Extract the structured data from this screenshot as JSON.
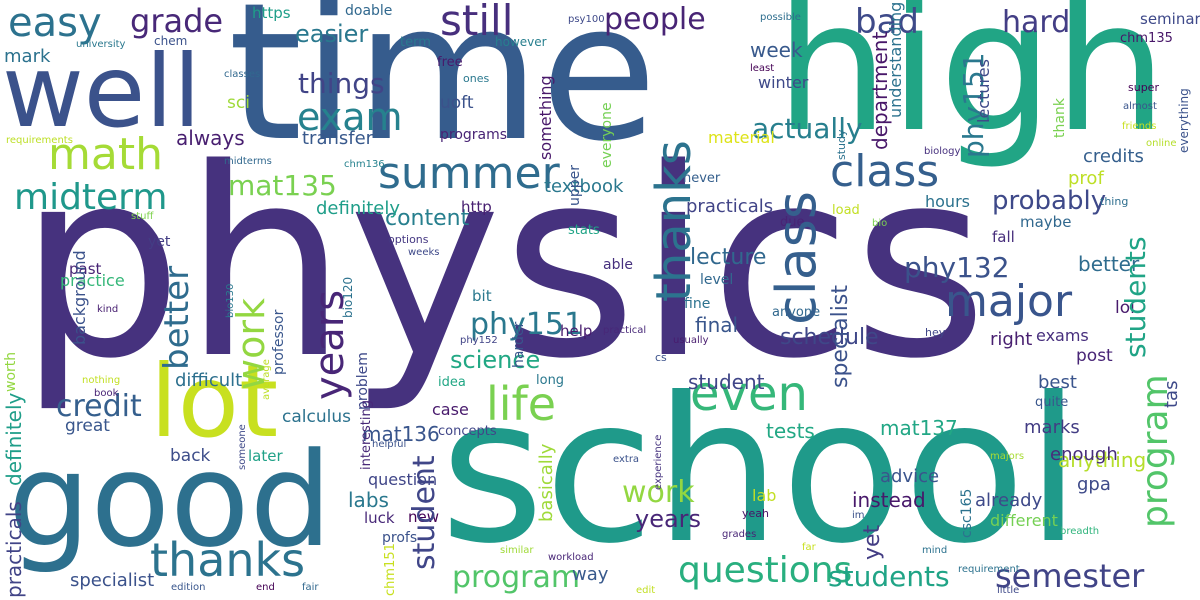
{
  "words": [
    {
      "text": "physics",
      "color": "#46327e"
    },
    {
      "text": "time",
      "color": "#365c8d"
    },
    {
      "text": "high",
      "color": "#21a585"
    },
    {
      "text": "school",
      "color": "#1f9a8a"
    },
    {
      "text": "good",
      "color": "#2d708e"
    },
    {
      "text": "well",
      "color": "#3b528b"
    },
    {
      "text": "lot",
      "color": "#c8e020"
    },
    {
      "text": "easy",
      "color": "#2c728e"
    },
    {
      "text": "grade",
      "color": "#482878"
    },
    {
      "text": "still",
      "color": "#472f7d"
    },
    {
      "text": "people",
      "color": "#482475"
    },
    {
      "text": "bad",
      "color": "#3e4a89"
    },
    {
      "text": "hard",
      "color": "#433e85"
    },
    {
      "text": "easier",
      "color": "#2a788e"
    },
    {
      "text": "math",
      "color": "#a5db36"
    },
    {
      "text": "exam",
      "color": "#26828e"
    },
    {
      "text": "things",
      "color": "#414487"
    },
    {
      "text": "midterm",
      "color": "#1f988b"
    },
    {
      "text": "summer",
      "color": "#2f6c8e"
    },
    {
      "text": "class",
      "color": "#355f8d"
    },
    {
      "text": "major",
      "color": "#39558c"
    },
    {
      "text": "life",
      "color": "#7ad151"
    },
    {
      "text": "even",
      "color": "#35b779"
    },
    {
      "text": "thanks",
      "color": "#2c738e"
    },
    {
      "text": "questions",
      "color": "#29af7f"
    },
    {
      "text": "program",
      "color": "#52c569"
    },
    {
      "text": "students",
      "color": "#20a486"
    },
    {
      "text": "semester",
      "color": "#414487"
    },
    {
      "text": "mat135",
      "color": "#7ad151"
    },
    {
      "text": "credit",
      "color": "#355f8d"
    },
    {
      "text": "probably",
      "color": "#3e4989"
    },
    {
      "text": "actually",
      "color": "#277f8e"
    },
    {
      "text": "phy132",
      "color": "#3b528b"
    },
    {
      "text": "phy151",
      "color": "#2a788e"
    },
    {
      "text": "work",
      "color": "#93d741"
    },
    {
      "text": "years",
      "color": "#482677"
    },
    {
      "text": "final",
      "color": "#39568c"
    },
    {
      "text": "better",
      "color": "#2f6c8e"
    },
    {
      "text": "marks",
      "color": "#433d84"
    },
    {
      "text": "way",
      "color": "#38598c"
    },
    {
      "text": "mat137",
      "color": "#22a785"
    },
    {
      "text": "tests",
      "color": "#22a884"
    },
    {
      "text": "student",
      "color": "#404688"
    },
    {
      "text": "best",
      "color": "#3a548c"
    },
    {
      "text": "back",
      "color": "#3d4d8a"
    },
    {
      "text": "great",
      "color": "#39568c"
    },
    {
      "text": "specialist",
      "color": "#3b528b"
    },
    {
      "text": "labs",
      "color": "#2a788e"
    },
    {
      "text": "mat136",
      "color": "#39558c"
    },
    {
      "text": "question",
      "color": "#404688"
    },
    {
      "text": "difficult",
      "color": "#2d708e"
    },
    {
      "text": "calculus",
      "color": "#2c728e"
    },
    {
      "text": "science",
      "color": "#22a884"
    },
    {
      "text": "schedule",
      "color": "#3f4788"
    },
    {
      "text": "lecture",
      "color": "#31688e"
    },
    {
      "text": "content",
      "color": "#277f8e"
    },
    {
      "text": "definitely",
      "color": "#1f9e89"
    },
    {
      "text": "practicals",
      "color": "#414487"
    },
    {
      "text": "textbook",
      "color": "#2a788e"
    },
    {
      "text": "hours",
      "color": "#2c728e"
    },
    {
      "text": "prof",
      "color": "#bddf26"
    },
    {
      "text": "credits",
      "color": "#355f8d"
    },
    {
      "text": "transfer",
      "color": "#38598c"
    },
    {
      "text": "always",
      "color": "#481f70"
    },
    {
      "text": "sci",
      "color": "#9fda3a"
    },
    {
      "text": "mark",
      "color": "#2c728e"
    },
    {
      "text": "uoft",
      "color": "#3b528b"
    },
    {
      "text": "winter",
      "color": "#3e4989"
    },
    {
      "text": "week",
      "color": "#38598c"
    },
    {
      "text": "material",
      "color": "#dde318"
    },
    {
      "text": "anything",
      "color": "#b5de2b"
    },
    {
      "text": "enough",
      "color": "#472d7b"
    },
    {
      "text": "gpa",
      "color": "#3e4a89"
    },
    {
      "text": "advice",
      "color": "#3a548c"
    },
    {
      "text": "instead",
      "color": "#48186a"
    },
    {
      "text": "already",
      "color": "#3e4989"
    },
    {
      "text": "lab",
      "color": "#c2df23"
    },
    {
      "text": "different",
      "color": "#75d054"
    },
    {
      "text": "post",
      "color": "#482576"
    },
    {
      "text": "exams",
      "color": "#472f7d"
    },
    {
      "text": "right",
      "color": "#481f70"
    },
    {
      "text": "lol",
      "color": "#481a6c"
    },
    {
      "text": "fall",
      "color": "#472e7c"
    },
    {
      "text": "maybe",
      "color": "#31688e"
    },
    {
      "text": "bit",
      "color": "#2a788e"
    },
    {
      "text": "fine",
      "color": "#2c728e"
    },
    {
      "text": "able",
      "color": "#46307e"
    },
    {
      "text": "level",
      "color": "#31688e"
    },
    {
      "text": "practice",
      "color": "#35b779"
    },
    {
      "text": "past",
      "color": "#482475"
    },
    {
      "text": "yet",
      "color": "#433d84"
    },
    {
      "text": "help",
      "color": "#481c6e"
    },
    {
      "text": "case",
      "color": "#481a6c"
    },
    {
      "text": "new",
      "color": "#440154"
    },
    {
      "text": "luck",
      "color": "#482878"
    },
    {
      "text": "profs",
      "color": "#3b528b"
    },
    {
      "text": "later",
      "color": "#1fa187"
    },
    {
      "text": "concepts",
      "color": "#404688"
    },
    {
      "text": "idea",
      "color": "#22a785"
    },
    {
      "text": "long",
      "color": "#2a788e"
    },
    {
      "text": "quite",
      "color": "#39568c"
    },
    {
      "text": "anyone",
      "color": "#31688e"
    },
    {
      "text": "never",
      "color": "#355f8d"
    },
    {
      "text": "stats",
      "color": "#20a486"
    },
    {
      "text": "http",
      "color": "#482071"
    },
    {
      "text": "https",
      "color": "#1f9e89"
    },
    {
      "text": "doable",
      "color": "#31688e"
    },
    {
      "text": "chem",
      "color": "#3b528b"
    },
    {
      "text": "term",
      "color": "#2a788e"
    },
    {
      "text": "however",
      "color": "#277f8e"
    },
    {
      "text": "free",
      "color": "#481a6c"
    },
    {
      "text": "ones",
      "color": "#2a788e"
    },
    {
      "text": "programs",
      "color": "#482475"
    },
    {
      "text": "seminar",
      "color": "#3e4989"
    },
    {
      "text": "chm135",
      "color": "#481769"
    },
    {
      "text": "psy100",
      "color": "#3e4989"
    },
    {
      "text": "possible",
      "color": "#2e6e8e"
    },
    {
      "text": "university",
      "color": "#2a788e"
    },
    {
      "text": "classes",
      "color": "#31688e"
    },
    {
      "text": "least",
      "color": "#440154"
    },
    {
      "text": "requirements",
      "color": "#bddf26"
    },
    {
      "text": "midterms",
      "color": "#31688e"
    },
    {
      "text": "chm136",
      "color": "#26828e"
    },
    {
      "text": "stuff",
      "color": "#7fd34e"
    },
    {
      "text": "biology",
      "color": "#46307e"
    },
    {
      "text": "thing",
      "color": "#2e6e8e"
    },
    {
      "text": "bio",
      "color": "#7ad151"
    },
    {
      "text": "options",
      "color": "#453882"
    },
    {
      "text": "weeks",
      "color": "#3e4989"
    },
    {
      "text": "load",
      "color": "#c2df23"
    },
    {
      "text": "due",
      "color": "#482475"
    },
    {
      "text": "super",
      "color": "#440154"
    },
    {
      "text": "almost",
      "color": "#39558c"
    },
    {
      "text": "online",
      "color": "#b5de2b"
    },
    {
      "text": "friends",
      "color": "#c8e020"
    },
    {
      "text": "kind",
      "color": "#482071"
    },
    {
      "text": "nothing",
      "color": "#c2df23"
    },
    {
      "text": "book",
      "color": "#482475"
    },
    {
      "text": "helpful",
      "color": "#3b528b"
    },
    {
      "text": "extra",
      "color": "#3b528b"
    },
    {
      "text": "practical",
      "color": "#482878"
    },
    {
      "text": "phy152",
      "color": "#414487"
    },
    {
      "text": "usually",
      "color": "#481c6e"
    },
    {
      "text": "cs",
      "color": "#3b528b"
    },
    {
      "text": "hey",
      "color": "#404688"
    },
    {
      "text": "majors",
      "color": "#a8db34"
    },
    {
      "text": "im",
      "color": "#3b528b"
    },
    {
      "text": "grades",
      "color": "#482576"
    },
    {
      "text": "yeah",
      "color": "#481467"
    },
    {
      "text": "workload",
      "color": "#482677"
    },
    {
      "text": "similar",
      "color": "#a0da39"
    },
    {
      "text": "edition",
      "color": "#39568c"
    },
    {
      "text": "end",
      "color": "#440154"
    },
    {
      "text": "fair",
      "color": "#31688e"
    },
    {
      "text": "edit",
      "color": "#c2df23"
    },
    {
      "text": "requirement",
      "color": "#2c728e"
    },
    {
      "text": "little",
      "color": "#3e4989"
    },
    {
      "text": "breadth",
      "color": "#2fb47c"
    },
    {
      "text": "mind",
      "color": "#2c728e"
    },
    {
      "text": "far",
      "color": "#c8e020"
    },
    {
      "text": "grad",
      "color": "#2c728e"
    },
    {
      "text": "half",
      "color": "#440154"
    },
    {
      "text": "full",
      "color": "#481a6c"
    },
    {
      "text": "barely",
      "color": "#bddf26"
    },
    {
      "text": "knowledge",
      "color": "#22a785"
    },
    {
      "text": "less",
      "color": "#3e4989"
    },
    {
      "text": "especially",
      "color": "#472c7a"
    },
    {
      "text": "terms",
      "color": "#482878"
    },
    {
      "text": "money",
      "color": "#481f70"
    },
    {
      "text": "interested",
      "color": "#2e6e8e"
    },
    {
      "text": "problems",
      "color": "#2a788e"
    },
    {
      "text": "degree",
      "color": "#b5de2b"
    },
    {
      "text": "else",
      "color": "#31688e"
    },
    {
      "text": "chemistry",
      "color": "#c8e020"
    },
    {
      "text": "test",
      "color": "#26828e"
    },
    {
      "text": "choice",
      "color": "#b5de2b"
    },
    {
      "text": "worth",
      "color": "#93d741"
    },
    {
      "text": "background",
      "color": "#3b528b"
    },
    {
      "text": "bio130",
      "color": "#2a788e"
    },
    {
      "text": "average",
      "color": "#bddf26"
    },
    {
      "text": "professor",
      "color": "#39568c"
    },
    {
      "text": "bio120",
      "color": "#2c728e"
    },
    {
      "text": "problem",
      "color": "#3e4989"
    },
    {
      "text": "interesting",
      "color": "#482878"
    },
    {
      "text": "chm151",
      "color": "#c8e020"
    },
    {
      "text": "harder",
      "color": "#39558c"
    },
    {
      "text": "basically",
      "color": "#9fda3a"
    },
    {
      "text": "experience",
      "color": "#46337f"
    },
    {
      "text": "someone",
      "color": "#3e4989"
    },
    {
      "text": "something",
      "color": "#48186a"
    },
    {
      "text": "upper",
      "color": "#39558c"
    },
    {
      "text": "everyone",
      "color": "#75d054"
    },
    {
      "text": "department",
      "color": "#481769"
    },
    {
      "text": "understanding",
      "color": "#2c728e"
    },
    {
      "text": "lectures",
      "color": "#3e4989"
    },
    {
      "text": "thank",
      "color": "#7ad151"
    },
    {
      "text": "everything",
      "color": "#3b528b"
    },
    {
      "text": "study",
      "color": "#2c728e"
    },
    {
      "text": "tas",
      "color": "#3e4989"
    },
    {
      "text": "csc165",
      "color": "#2c728e"
    }
  ]
}
